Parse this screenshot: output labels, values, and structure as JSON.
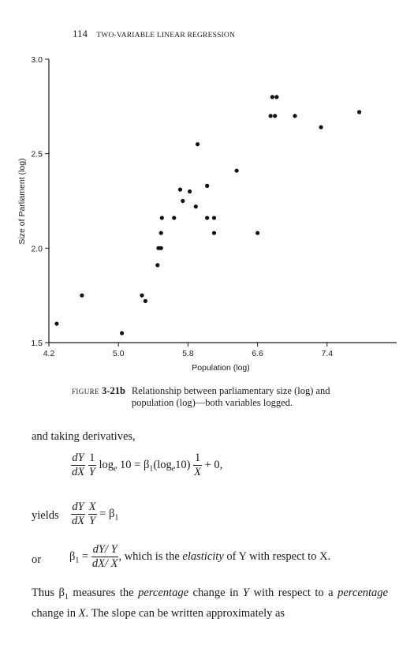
{
  "header": {
    "page_number": "114",
    "running_title": "TWO-VARIABLE LINEAR REGRESSION"
  },
  "chart_data": {
    "type": "scatter",
    "title": "",
    "xlabel": "Population (log)",
    "ylabel": "Size of Parliament (log)",
    "xlim": [
      4.2,
      8.2
    ],
    "ylim": [
      1.5,
      3.0
    ],
    "xticks": [
      4.2,
      5.0,
      5.8,
      6.6,
      7.4
    ],
    "xtick_labels": [
      "4.2",
      "5.0",
      "5.8",
      "6.6",
      "7.4"
    ],
    "yticks": [
      1.5,
      2.0,
      2.5,
      3.0
    ],
    "ytick_labels": [
      "1.5",
      "2.0",
      "2.5",
      "3.0"
    ],
    "grid": false,
    "marker_color": "#111111",
    "points": [
      {
        "x": 4.29,
        "y": 1.6
      },
      {
        "x": 4.58,
        "y": 1.75
      },
      {
        "x": 5.04,
        "y": 1.55
      },
      {
        "x": 5.27,
        "y": 1.75
      },
      {
        "x": 5.31,
        "y": 1.72
      },
      {
        "x": 5.45,
        "y": 1.91
      },
      {
        "x": 5.46,
        "y": 2.0
      },
      {
        "x": 5.49,
        "y": 2.0
      },
      {
        "x": 5.49,
        "y": 2.08
      },
      {
        "x": 5.5,
        "y": 2.16
      },
      {
        "x": 5.64,
        "y": 2.16
      },
      {
        "x": 5.71,
        "y": 2.31
      },
      {
        "x": 5.74,
        "y": 2.25
      },
      {
        "x": 5.82,
        "y": 2.3
      },
      {
        "x": 5.89,
        "y": 2.22
      },
      {
        "x": 5.91,
        "y": 2.55
      },
      {
        "x": 6.02,
        "y": 2.33
      },
      {
        "x": 6.02,
        "y": 2.16
      },
      {
        "x": 6.1,
        "y": 2.16
      },
      {
        "x": 6.1,
        "y": 2.08
      },
      {
        "x": 6.36,
        "y": 2.41
      },
      {
        "x": 6.6,
        "y": 2.08
      },
      {
        "x": 6.75,
        "y": 2.7
      },
      {
        "x": 6.77,
        "y": 2.8
      },
      {
        "x": 6.8,
        "y": 2.7
      },
      {
        "x": 6.82,
        "y": 2.8
      },
      {
        "x": 7.03,
        "y": 2.7
      },
      {
        "x": 7.33,
        "y": 2.64
      },
      {
        "x": 7.77,
        "y": 2.72
      }
    ]
  },
  "caption": {
    "figure_word": "FIGURE",
    "figure_number": "3-21b",
    "text": "Relationship between parliamentary size (log) and population (log)—both variables logged."
  },
  "body": {
    "intro": "and taking derivatives,",
    "yields_word": "yields",
    "or_word": "or",
    "eq3_text": ", which is the",
    "elasticity_word": "elasticity",
    "eq3_tail": "of Y with respect to X.",
    "para_1": "Thus β",
    "para_2": " measures the ",
    "para_3": "percentage",
    "para_4": " change in ",
    "para_5": "Y",
    "para_6": " with respect to a ",
    "para_7": "percentage",
    "para_8": " change in ",
    "para_9": "X",
    "para_10": ". The slope can be written approximately as"
  }
}
